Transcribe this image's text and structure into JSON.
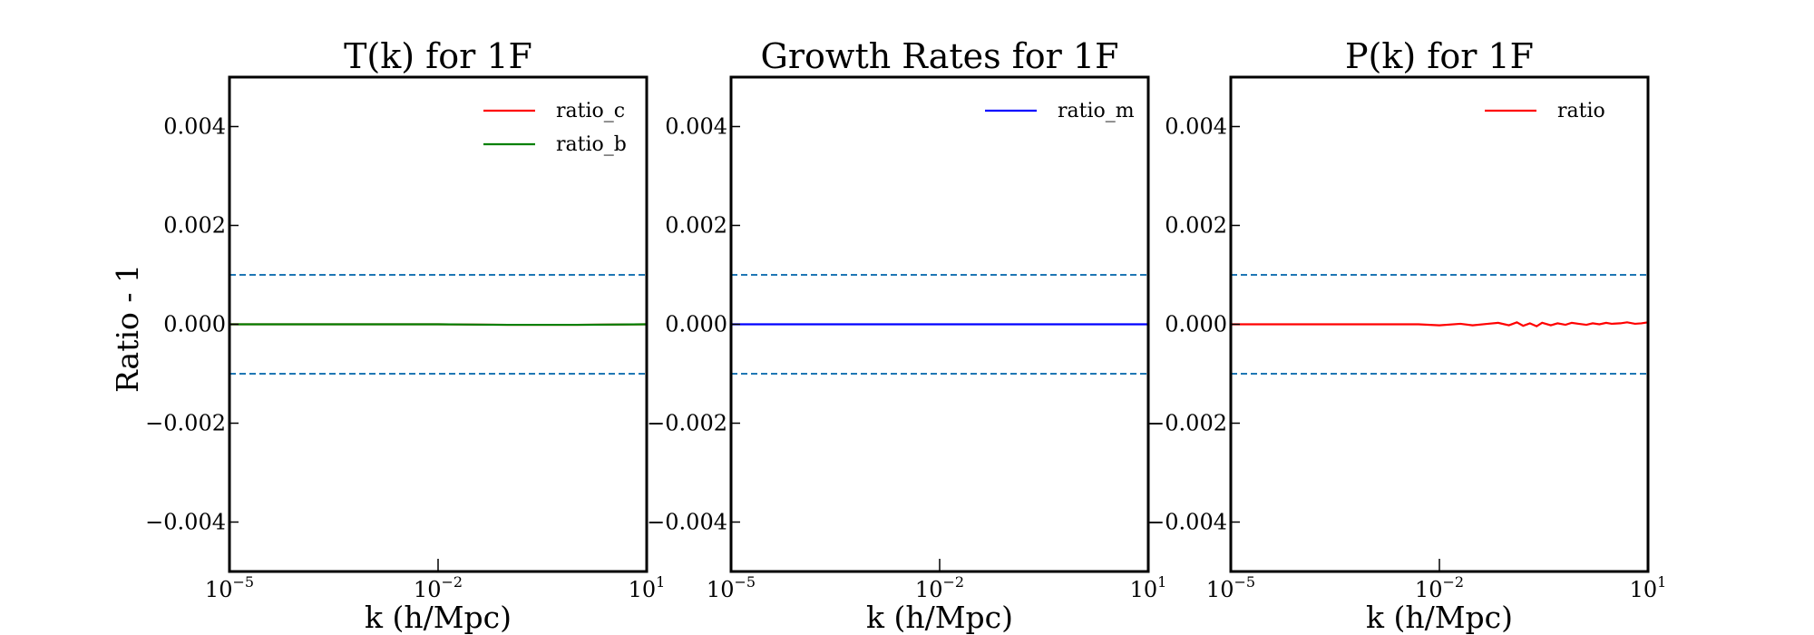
{
  "figure": {
    "ylabel": "Ratio - 1"
  },
  "chart_data": [
    {
      "type": "line",
      "title": "T(k) for 1F",
      "xlabel": "k (h/Mpc)",
      "ylabel": "Ratio - 1",
      "xscale": "log",
      "xlim": [
        1e-05,
        10
      ],
      "ylim": [
        -0.005,
        0.005
      ],
      "xticks": [
        {
          "base": "10",
          "exp": "−5"
        },
        {
          "base": "10",
          "exp": "−2"
        },
        {
          "base": "10",
          "exp": "1"
        }
      ],
      "yticks": [
        "0.004",
        "0.002",
        "0.000",
        "−0.002",
        "−0.004"
      ],
      "ytick_values": [
        0.004,
        0.002,
        0.0,
        -0.002,
        -0.004
      ],
      "hlines": [
        {
          "y": 0.001,
          "color": "#1f77b4",
          "style": "dashed"
        },
        {
          "y": -0.001,
          "color": "#1f77b4",
          "style": "dashed"
        }
      ],
      "legend_position": "upper right",
      "series": [
        {
          "name": "ratio_c",
          "color": "#ff0000",
          "x": [
            1e-05,
            0.0001,
            0.001,
            0.01,
            0.1,
            1,
            10
          ],
          "y": [
            0,
            0,
            0,
            0,
            -1e-05,
            -1e-05,
            0
          ]
        },
        {
          "name": "ratio_b",
          "color": "#008000",
          "x": [
            1e-05,
            0.0001,
            0.001,
            0.01,
            0.1,
            1,
            10
          ],
          "y": [
            0,
            0,
            0,
            0,
            -1e-05,
            -1e-05,
            0
          ]
        }
      ]
    },
    {
      "type": "line",
      "title": "Growth Rates for 1F",
      "xlabel": "k (h/Mpc)",
      "xscale": "log",
      "xlim": [
        1e-05,
        10
      ],
      "ylim": [
        -0.005,
        0.005
      ],
      "xticks": [
        {
          "base": "10",
          "exp": "−5"
        },
        {
          "base": "10",
          "exp": "−2"
        },
        {
          "base": "10",
          "exp": "1"
        }
      ],
      "yticks": [
        "0.004",
        "0.002",
        "0.000",
        "−0.002",
        "−0.004"
      ],
      "ytick_values": [
        0.004,
        0.002,
        0.0,
        -0.002,
        -0.004
      ],
      "hlines": [
        {
          "y": 0.001,
          "color": "#1f77b4",
          "style": "dashed"
        },
        {
          "y": -0.001,
          "color": "#1f77b4",
          "style": "dashed"
        }
      ],
      "legend_position": "upper right",
      "series": [
        {
          "name": "ratio_m",
          "color": "#0000ff",
          "x": [
            1e-05,
            0.001,
            0.1,
            10
          ],
          "y": [
            0,
            0,
            0,
            0
          ]
        }
      ]
    },
    {
      "type": "line",
      "title": "P(k) for 1F",
      "xlabel": "k (h/Mpc)",
      "xscale": "log",
      "xlim": [
        1e-05,
        10
      ],
      "ylim": [
        -0.005,
        0.005
      ],
      "xticks": [
        {
          "base": "10",
          "exp": "−5"
        },
        {
          "base": "10",
          "exp": "−2"
        },
        {
          "base": "10",
          "exp": "1"
        }
      ],
      "yticks": [
        "0.004",
        "0.002",
        "0.000",
        "−0.002",
        "−0.004"
      ],
      "ytick_values": [
        0.004,
        0.002,
        0.0,
        -0.002,
        -0.004
      ],
      "hlines": [
        {
          "y": 0.001,
          "color": "#1f77b4",
          "style": "dashed"
        },
        {
          "y": -0.001,
          "color": "#1f77b4",
          "style": "dashed"
        }
      ],
      "legend_position": "upper right",
      "series": [
        {
          "name": "ratio",
          "color": "#ff0000",
          "x": [
            1e-05,
            0.0001,
            0.001,
            0.005,
            0.01,
            0.02,
            0.03,
            0.05,
            0.07,
            0.1,
            0.13,
            0.16,
            0.2,
            0.25,
            0.3,
            0.4,
            0.5,
            0.65,
            0.8,
            1,
            1.3,
            1.6,
            2,
            2.5,
            3,
            4,
            5,
            6.5,
            8,
            10
          ],
          "y": [
            0,
            0,
            0,
            0,
            -2e-05,
            1e-05,
            -2e-05,
            1e-05,
            3e-05,
            -2e-05,
            4e-05,
            -3e-05,
            2e-05,
            -4e-05,
            3e-05,
            -2e-05,
            2e-05,
            -1e-05,
            3e-05,
            1e-05,
            -1e-05,
            2e-05,
            0,
            3e-05,
            1e-05,
            2e-05,
            4e-05,
            1e-05,
            2e-05,
            4e-05
          ]
        }
      ]
    }
  ]
}
